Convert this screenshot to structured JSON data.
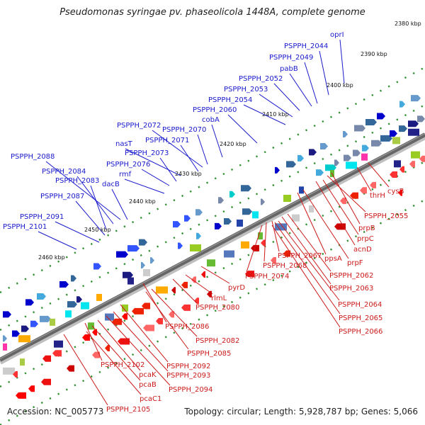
{
  "title": "Pseudomonas syringae pv. phaseolicola 1448A, complete genome",
  "footer": {
    "accession": "Accession: NC_005773",
    "topology": "Topology: circular; Length: 5,928,787 bp; Genes: 5,066"
  },
  "ticks": [
    "2380 kbp",
    "2390 kbp",
    "2400 kbp",
    "2410 kbp",
    "2420 kbp",
    "2430 kbp",
    "2440 kbp",
    "2450 kbp",
    "2460 kbp"
  ],
  "labels_top": [
    "oprI",
    "PSPPH_2044",
    "PSPPH_2049",
    "pabB",
    "PSPPH_2052",
    "PSPPH_2053",
    "PSPPH_2054",
    "PSPPH_2060",
    "cobA",
    "PSPPH_2072",
    "PSPPH_2070",
    "PSPPH_2071",
    "nasT",
    "PSPPH_2073",
    "PSPPH_2076",
    "rmf",
    "PSPPH_2088",
    "PSPPH_2084",
    "PSPPH_2083",
    "dacB",
    "PSPPH_2087",
    "PSPPH_2091",
    "PSPPH_2101"
  ],
  "labels_bottom": [
    "cysB",
    "thrH",
    "PSPPH_2055",
    "prpB",
    "prpC",
    "acnD",
    "prpF",
    "ppsA",
    "PSPPH_2067",
    "PSPPH_2068",
    "PSPPH_2074",
    "PSPPH_2062",
    "PSPPH_2063",
    "PSPPH_2064",
    "PSPPH_2065",
    "PSPPH_2066",
    "pyrD",
    "rlmL",
    "PSPPH_2080",
    "PSPPH_2086",
    "PSPPH_2082",
    "PSPPH_2085",
    "PSPPH_2092",
    "PSPPH_2093",
    "PSPPH_2094",
    "PSPPH_2102",
    "pcaK",
    "pcaB",
    "pcaC1",
    "PSPPH_2105"
  ],
  "colors": {
    "top_label": "#1a1acc",
    "bottom_label": "#cc1a1a",
    "backbone": "#666666",
    "tick_dot": "#2f8f2f"
  }
}
